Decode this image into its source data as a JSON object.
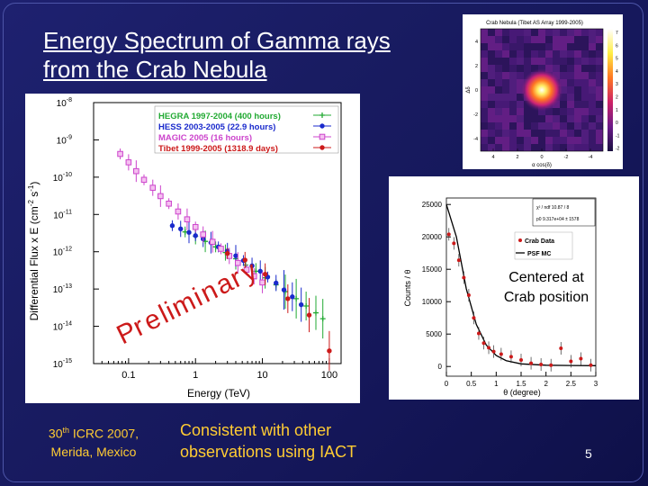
{
  "slide": {
    "title_line1": "Energy Spectrum of Gamma rays",
    "title_line2": "from the Crab Nebula",
    "conference_line1": "30",
    "conference_sup": "th",
    "conference_line1_rest": " ICRC 2007,",
    "conference_line2": "Merida, Mexico",
    "consistent_line1": "Consistent with other",
    "consistent_line2": "observations using IACT",
    "page_number": "5",
    "centered_line1": "Centered at",
    "centered_line2": "Crab position"
  },
  "colors": {
    "hegra": "#22aa33",
    "hess": "#1a2acc",
    "magic": "#cc44cc",
    "tibet": "#cc1a1a"
  },
  "chart_data": [
    {
      "type": "scatter",
      "title": "",
      "xlabel": "Energy (TeV)",
      "ylabel": "Differential Flux x E (cm",
      "ylabel_sup1": "-2",
      "ylabel_mid": " s",
      "ylabel_sup2": "-1",
      "ylabel_end": ")",
      "xscale": "log",
      "yscale": "log",
      "xlim": [
        0.03,
        150
      ],
      "ylim": [
        1e-15,
        1e-08
      ],
      "x_ticks": [
        {
          "v": 0.1,
          "label": "0.1"
        },
        {
          "v": 1,
          "label": "1"
        },
        {
          "v": 10,
          "label": "10"
        },
        {
          "v": 100,
          "label": "100"
        }
      ],
      "y_ticks": [
        {
          "v": 1e-08,
          "b": "10",
          "e": "-8"
        },
        {
          "v": 1e-09,
          "b": "10",
          "e": "-9"
        },
        {
          "v": 1e-10,
          "b": "10",
          "e": "-10"
        },
        {
          "v": 1e-11,
          "b": "10",
          "e": "-11"
        },
        {
          "v": 1e-12,
          "b": "10",
          "e": "-12"
        },
        {
          "v": 1e-13,
          "b": "10",
          "e": "-13"
        },
        {
          "v": 1e-14,
          "b": "10",
          "e": "-14"
        },
        {
          "v": 1e-15,
          "b": "10",
          "e": "-15"
        }
      ],
      "annotation": [
        "P",
        "r",
        "e",
        "l",
        "i",
        "m",
        "i",
        "n",
        "a",
        "r",
        "y"
      ],
      "series": [
        {
          "name": "HEGRA 1997-2004 (400 hours)",
          "color": "#22aa33",
          "marker": "plus",
          "x": [
            0.7,
            1.0,
            1.4,
            2.0,
            2.8,
            4.0,
            5.6,
            8.0,
            11,
            16,
            22,
            32,
            45,
            63,
            80
          ],
          "y": [
            3.4e-12,
            2.6e-12,
            1.9e-12,
            1.35e-12,
            9.5e-13,
            6.5e-13,
            4.4e-13,
            3e-13,
            2e-13,
            1.3e-13,
            8.5e-14,
            5.5e-14,
            3.5e-14,
            2.3e-14,
            1.6e-14
          ]
        },
        {
          "name": "HESS 2003-2005 (22.9 hours)",
          "color": "#1a2acc",
          "marker": "circle",
          "x": [
            0.45,
            0.6,
            0.8,
            1.0,
            1.3,
            1.7,
            2.2,
            3.0,
            4.0,
            5.2,
            7.0,
            9.3,
            12,
            16,
            21,
            28,
            38
          ],
          "y": [
            5e-12,
            4.1e-12,
            3.3e-12,
            2.7e-12,
            2.2e-12,
            1.75e-12,
            1.35e-12,
            1.05e-12,
            7.8e-13,
            5.8e-13,
            4.2e-13,
            3e-13,
            2.1e-13,
            1.45e-13,
            9.5e-14,
            6.2e-14,
            3.8e-14
          ]
        },
        {
          "name": "MAGIC 2005 (16 hours)",
          "color": "#cc44cc",
          "marker": "square",
          "x": [
            0.075,
            0.1,
            0.13,
            0.17,
            0.23,
            0.3,
            0.4,
            0.55,
            0.75,
            1.0,
            1.3,
            1.8,
            2.4,
            3.2,
            4.3,
            5.8,
            7.5,
            10
          ],
          "y": [
            4.2e-10,
            2.5e-10,
            1.45e-10,
            8.5e-11,
            5.2e-11,
            3.1e-11,
            1.95e-11,
            1.2e-11,
            7.4e-12,
            4.6e-12,
            2.9e-12,
            1.85e-12,
            1.2e-12,
            7.7e-13,
            5e-13,
            3.3e-13,
            2.2e-13,
            1.5e-13
          ]
        },
        {
          "name": "Tibet 1999-2005 (1318.9 days)",
          "color": "#cc1a1a",
          "marker": "circle",
          "x": [
            3.0,
            5.5,
            11,
            24,
            50,
            100
          ],
          "y": [
            9e-13,
            6e-13,
            2.5e-13,
            5.5e-14,
            2e-14,
            2.2e-15
          ]
        }
      ]
    },
    {
      "type": "scatter",
      "title": "",
      "xlabel": "θ (degree)",
      "ylabel": "Counts / θ",
      "xlim": [
        0,
        3
      ],
      "ylim": [
        -1500,
        26000
      ],
      "x_ticks": [
        "0",
        "0.5",
        "1",
        "1.5",
        "2",
        "2.5",
        "3"
      ],
      "y_ticks": [
        "0",
        "5000",
        "10000",
        "15000",
        "20000",
        "25000"
      ],
      "legend": [
        "Crab Data",
        "PSF MC"
      ],
      "stats_lines": [
        "χ² / ndf      10.87 / 8",
        "p0    9.317e+04 ± 1578"
      ],
      "series": [
        {
          "name": "Crab Data",
          "color": "#cc1a1a",
          "x": [
            0.05,
            0.15,
            0.25,
            0.35,
            0.45,
            0.55,
            0.65,
            0.75,
            0.85,
            0.95,
            1.1,
            1.3,
            1.5,
            1.7,
            1.9,
            2.1,
            2.3,
            2.5,
            2.7,
            2.9
          ],
          "y": [
            20400,
            19000,
            16400,
            13700,
            11000,
            7500,
            5100,
            3600,
            2900,
            2300,
            1900,
            1500,
            1000,
            500,
            300,
            200,
            2800,
            800,
            1200,
            200
          ]
        },
        {
          "name": "PSF MC",
          "color": "#000000",
          "x": [
            0,
            0.2,
            0.4,
            0.6,
            0.8,
            1.0,
            1.2,
            1.5,
            2.0,
            2.5,
            3.0
          ],
          "y": [
            25000,
            20000,
            12000,
            6500,
            3300,
            1700,
            900,
            400,
            200,
            150,
            120
          ]
        }
      ]
    },
    {
      "type": "heatmap",
      "title": "Crab Nebula (Tibet AS Array 1999-2005)",
      "xlabel": "α cos(δ)",
      "ylabel": "Δδ",
      "x_ticks": [
        "4",
        "2",
        "0",
        "-2",
        "-4"
      ],
      "y_ticks": [
        "4",
        "2",
        "0",
        "-2",
        "-4"
      ],
      "colorbar_ticks": [
        "7",
        "6",
        "5",
        "4",
        "3",
        "2",
        "1",
        "0",
        "-1",
        "-2"
      ],
      "peak": [
        0,
        0
      ],
      "peak_value": 7
    }
  ]
}
